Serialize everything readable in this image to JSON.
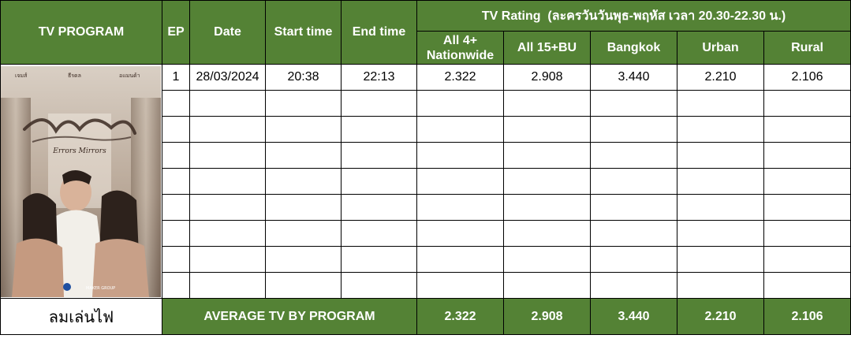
{
  "header": {
    "program": "TV PROGRAM",
    "ep": "EP",
    "date": "Date",
    "start_time": "Start time",
    "end_time": "End time",
    "rating_title": "TV Rating  (ละครวันวันพุธ-พฤหัส เวลา 20.30-22.30 น.)",
    "all4_line1": "All 4+",
    "all4_line2": "Nationwide",
    "all15": "All 15+BU",
    "bangkok": "Bangkok",
    "urban": "Urban",
    "rural": "Rural"
  },
  "poster": {
    "title_art": "ลมเล่นไฟ",
    "subtitle_art": "Errors Mirrors",
    "cast": [
      "เจมส์",
      "ธีรดล",
      "อแมนด้า"
    ],
    "logo_left": "ช่อง 3",
    "logo_right": "MAKER GROUP"
  },
  "rows": [
    {
      "ep": "1",
      "date": "28/03/2024",
      "start": "20:38",
      "end": "22:13",
      "all4": "2.322",
      "all15": "2.908",
      "bkk": "3.440",
      "urban": "2.210",
      "rural": "2.106"
    },
    {
      "ep": "",
      "date": "",
      "start": "",
      "end": "",
      "all4": "",
      "all15": "",
      "bkk": "",
      "urban": "",
      "rural": ""
    },
    {
      "ep": "",
      "date": "",
      "start": "",
      "end": "",
      "all4": "",
      "all15": "",
      "bkk": "",
      "urban": "",
      "rural": ""
    },
    {
      "ep": "",
      "date": "",
      "start": "",
      "end": "",
      "all4": "",
      "all15": "",
      "bkk": "",
      "urban": "",
      "rural": ""
    },
    {
      "ep": "",
      "date": "",
      "start": "",
      "end": "",
      "all4": "",
      "all15": "",
      "bkk": "",
      "urban": "",
      "rural": ""
    },
    {
      "ep": "",
      "date": "",
      "start": "",
      "end": "",
      "all4": "",
      "all15": "",
      "bkk": "",
      "urban": "",
      "rural": ""
    },
    {
      "ep": "",
      "date": "",
      "start": "",
      "end": "",
      "all4": "",
      "all15": "",
      "bkk": "",
      "urban": "",
      "rural": ""
    },
    {
      "ep": "",
      "date": "",
      "start": "",
      "end": "",
      "all4": "",
      "all15": "",
      "bkk": "",
      "urban": "",
      "rural": ""
    },
    {
      "ep": "",
      "date": "",
      "start": "",
      "end": "",
      "all4": "",
      "all15": "",
      "bkk": "",
      "urban": "",
      "rural": ""
    }
  ],
  "average": {
    "program_name": "ลมเล่นไฟ",
    "label": "AVERAGE TV BY PROGRAM",
    "all4": "2.322",
    "all15": "2.908",
    "bkk": "3.440",
    "urban": "2.210",
    "rural": "2.106"
  },
  "colors": {
    "header_green": "#548235",
    "header_text": "#ffffff"
  }
}
